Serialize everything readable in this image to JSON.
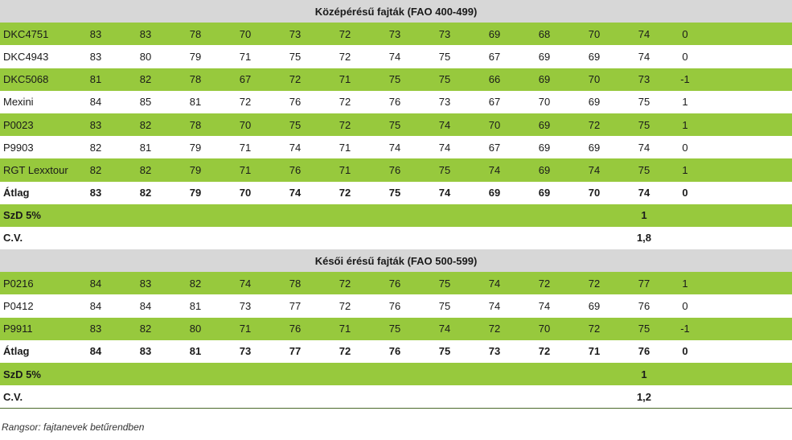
{
  "section1": {
    "title": "Középérésű fajták (FAO 400-499)",
    "rows": [
      {
        "name": "DKC4751",
        "values": [
          "83",
          "83",
          "78",
          "70",
          "73",
          "72",
          "73",
          "73",
          "69",
          "68",
          "70",
          "74",
          "0"
        ]
      },
      {
        "name": "DKC4943",
        "values": [
          "83",
          "80",
          "79",
          "71",
          "75",
          "72",
          "74",
          "75",
          "67",
          "69",
          "69",
          "74",
          "0"
        ]
      },
      {
        "name": "DKC5068",
        "values": [
          "81",
          "82",
          "78",
          "67",
          "72",
          "71",
          "75",
          "75",
          "66",
          "69",
          "70",
          "73",
          "-1"
        ]
      },
      {
        "name": "Mexini",
        "values": [
          "84",
          "85",
          "81",
          "72",
          "76",
          "72",
          "76",
          "73",
          "67",
          "70",
          "69",
          "75",
          "1"
        ]
      },
      {
        "name": "P0023",
        "values": [
          "83",
          "82",
          "78",
          "70",
          "75",
          "72",
          "75",
          "74",
          "70",
          "69",
          "72",
          "75",
          "1"
        ]
      },
      {
        "name": "P9903",
        "values": [
          "82",
          "81",
          "79",
          "71",
          "74",
          "71",
          "74",
          "74",
          "67",
          "69",
          "69",
          "74",
          "0"
        ]
      },
      {
        "name": "RGT Lexxtour",
        "values": [
          "82",
          "82",
          "79",
          "71",
          "76",
          "71",
          "76",
          "75",
          "74",
          "69",
          "74",
          "75",
          "1"
        ]
      }
    ],
    "average": {
      "name": "Átlag",
      "values": [
        "83",
        "82",
        "79",
        "70",
        "74",
        "72",
        "75",
        "74",
        "69",
        "69",
        "70",
        "74",
        "0"
      ]
    },
    "szd": {
      "name": "SzD 5%",
      "value": "1"
    },
    "cv": {
      "name": "C.V.",
      "value": "1,8"
    }
  },
  "section2": {
    "title": "Késői érésű fajták (FAO 500-599)",
    "rows": [
      {
        "name": "P0216",
        "values": [
          "84",
          "83",
          "82",
          "74",
          "78",
          "72",
          "76",
          "75",
          "74",
          "72",
          "72",
          "77",
          "1"
        ]
      },
      {
        "name": "P0412",
        "values": [
          "84",
          "84",
          "81",
          "73",
          "77",
          "72",
          "76",
          "75",
          "74",
          "74",
          "69",
          "76",
          "0"
        ]
      },
      {
        "name": "P9911",
        "values": [
          "83",
          "82",
          "80",
          "71",
          "76",
          "71",
          "75",
          "74",
          "72",
          "70",
          "72",
          "75",
          "-1"
        ]
      }
    ],
    "average": {
      "name": "Átlag",
      "values": [
        "84",
        "83",
        "81",
        "73",
        "77",
        "72",
        "76",
        "75",
        "73",
        "72",
        "71",
        "76",
        "0"
      ]
    },
    "szd": {
      "name": "SzD 5%",
      "value": "1"
    },
    "cv": {
      "name": "C.V.",
      "value": "1,2"
    }
  },
  "footnote": "Rangsor: fajtanevek betűrendben"
}
